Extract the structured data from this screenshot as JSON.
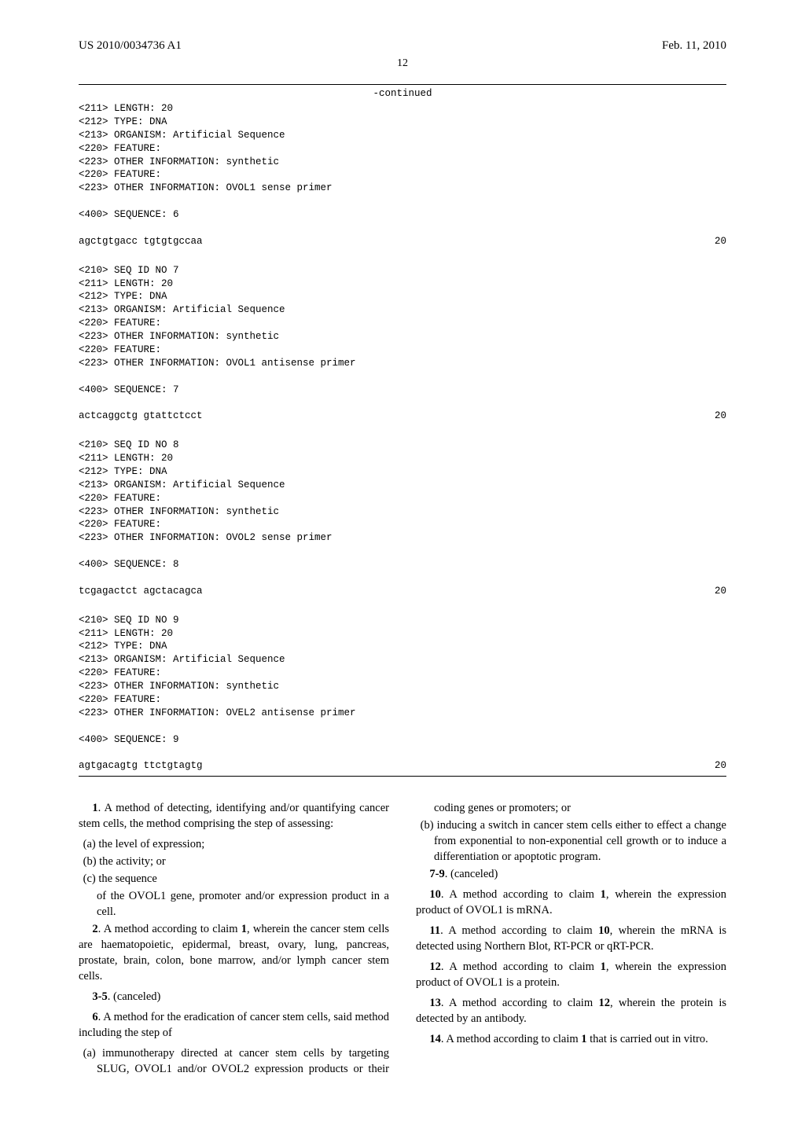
{
  "header": {
    "left": "US 2010/0034736 A1",
    "right": "Feb. 11, 2010"
  },
  "pageNumber": "12",
  "continued": "-continued",
  "seqText": "<211> LENGTH: 20\n<212> TYPE: DNA\n<213> ORGANISM: Artificial Sequence\n<220> FEATURE:\n<223> OTHER INFORMATION: synthetic\n<220> FEATURE:\n<223> OTHER INFORMATION: OVOL1 sense primer\n\n<400> SEQUENCE: 6",
  "seq6": {
    "seq": "agctgtgacc tgtgtgccaa",
    "len": "20"
  },
  "seqText7h": "<210> SEQ ID NO 7\n<211> LENGTH: 20\n<212> TYPE: DNA\n<213> ORGANISM: Artificial Sequence\n<220> FEATURE:\n<223> OTHER INFORMATION: synthetic\n<220> FEATURE:\n<223> OTHER INFORMATION: OVOL1 antisense primer\n\n<400> SEQUENCE: 7",
  "seq7": {
    "seq": "actcaggctg gtattctcct",
    "len": "20"
  },
  "seqText8h": "<210> SEQ ID NO 8\n<211> LENGTH: 20\n<212> TYPE: DNA\n<213> ORGANISM: Artificial Sequence\n<220> FEATURE:\n<223> OTHER INFORMATION: synthetic\n<220> FEATURE:\n<223> OTHER INFORMATION: OVOL2 sense primer\n\n<400> SEQUENCE: 8",
  "seq8": {
    "seq": "tcgagactct agctacagca",
    "len": "20"
  },
  "seqText9h": "<210> SEQ ID NO 9\n<211> LENGTH: 20\n<212> TYPE: DNA\n<213> ORGANISM: Artificial Sequence\n<220> FEATURE:\n<223> OTHER INFORMATION: synthetic\n<220> FEATURE:\n<223> OTHER INFORMATION: OVEL2 antisense primer\n\n<400> SEQUENCE: 9",
  "seq9": {
    "seq": "agtgacagtg ttctgtagtg",
    "len": "20"
  },
  "claims": {
    "c1n": "1",
    "c1": ". A method of detecting, identifying and/or quantifying cancer stem cells, the method comprising the step of assessing:",
    "c1a": "(a) the level of expression;",
    "c1b": "(b) the activity; or",
    "c1c": "(c) the sequence",
    "c1d": "of the OVOL1 gene, promoter and/or expression product in a cell.",
    "c2n": "2",
    "c2": ". A method according to claim ",
    "c2r": "1",
    "c2t": ", wherein the cancer stem cells are haematopoietic, epidermal, breast, ovary, lung, pancreas, prostate, brain, colon, bone marrow, and/or lymph cancer stem cells.",
    "c35n": "3-5",
    "c35": ". (canceled)",
    "c6n": "6",
    "c6": ". A method for the eradication of cancer stem cells, said method including the step of",
    "c6a": "(a) immunotherapy directed at cancer stem cells by targeting SLUG, OVOL1 and/or OVOL2 expression products or their coding genes or promoters; or",
    "c6b": "(b) inducing a switch in cancer stem cells either to effect a change from exponential to non-exponential cell growth or to induce a differentiation or apoptotic program.",
    "c79n": "7-9",
    "c79": ". (canceled)",
    "c10n": "10",
    "c10a": ". A method according to claim ",
    "c10r": "1",
    "c10b": ", wherein the expression product of OVOL1 is mRNA.",
    "c11n": "11",
    "c11a": ". A method according to claim ",
    "c11r": "10",
    "c11b": ", wherein the mRNA is detected using Northern Blot, RT-PCR or qRT-PCR.",
    "c12n": "12",
    "c12a": ". A method according to claim ",
    "c12r": "1",
    "c12b": ", wherein the expression product of OVOL1 is a protein.",
    "c13n": "13",
    "c13a": ". A method according to claim ",
    "c13r": "12",
    "c13b": ", wherein the protein is detected by an antibody.",
    "c14n": "14",
    "c14a": ". A method according to claim ",
    "c14r": "1",
    "c14b": " that is carried out in vitro."
  }
}
